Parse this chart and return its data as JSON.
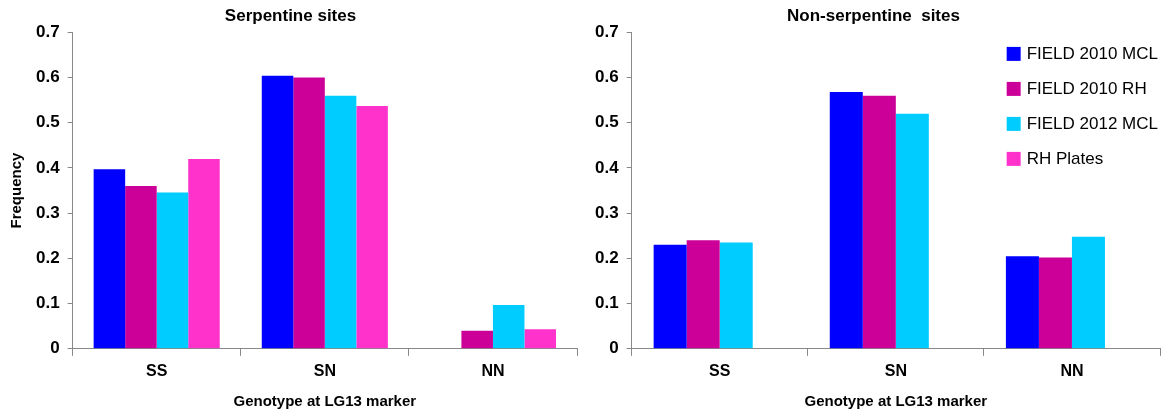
{
  "chart_data": [
    {
      "type": "bar",
      "title": "Serpentine sites",
      "xlabel": "Genotype at LG13 marker",
      "ylabel": "Frequency",
      "categories": [
        "SS",
        "SN",
        "NN"
      ],
      "ylim": [
        0,
        0.7
      ],
      "yticks": [
        0,
        0.1,
        0.2,
        0.3,
        0.4,
        0.5,
        0.6,
        0.7
      ],
      "grid": false,
      "legend": false,
      "series": [
        {
          "color": "#0000ff",
          "values": [
            0.397,
            0.604,
            null
          ]
        },
        {
          "color": "#cc0099",
          "values": [
            0.36,
            0.6,
            0.04
          ]
        },
        {
          "color": "#00ccff",
          "values": [
            0.346,
            0.56,
            0.097
          ]
        },
        {
          "color": "#ff33cc",
          "values": [
            0.42,
            0.537,
            0.043
          ]
        }
      ]
    },
    {
      "type": "bar",
      "title": "Non-serpentine  sites",
      "xlabel": "Genotype at LG13 marker",
      "categories": [
        "SS",
        "SN",
        "NN"
      ],
      "ylim": [
        0,
        0.7
      ],
      "yticks": [
        0,
        0.1,
        0.2,
        0.3,
        0.4,
        0.5,
        0.6,
        0.7
      ],
      "grid": false,
      "legend": "top right",
      "series": [
        {
          "name": "FIELD 2010 MCL",
          "color": "#0000ff",
          "values": [
            0.23,
            0.568,
            0.205
          ]
        },
        {
          "name": "FIELD 2010 RH",
          "color": "#cc0099",
          "values": [
            0.24,
            0.56,
            0.202
          ]
        },
        {
          "name": "FIELD 2012 MCL",
          "color": "#00ccff",
          "values": [
            0.235,
            0.52,
            0.248
          ]
        },
        {
          "name": "RH Plates",
          "color": "#ff33cc",
          "values": [
            null,
            null,
            null
          ]
        }
      ]
    }
  ]
}
